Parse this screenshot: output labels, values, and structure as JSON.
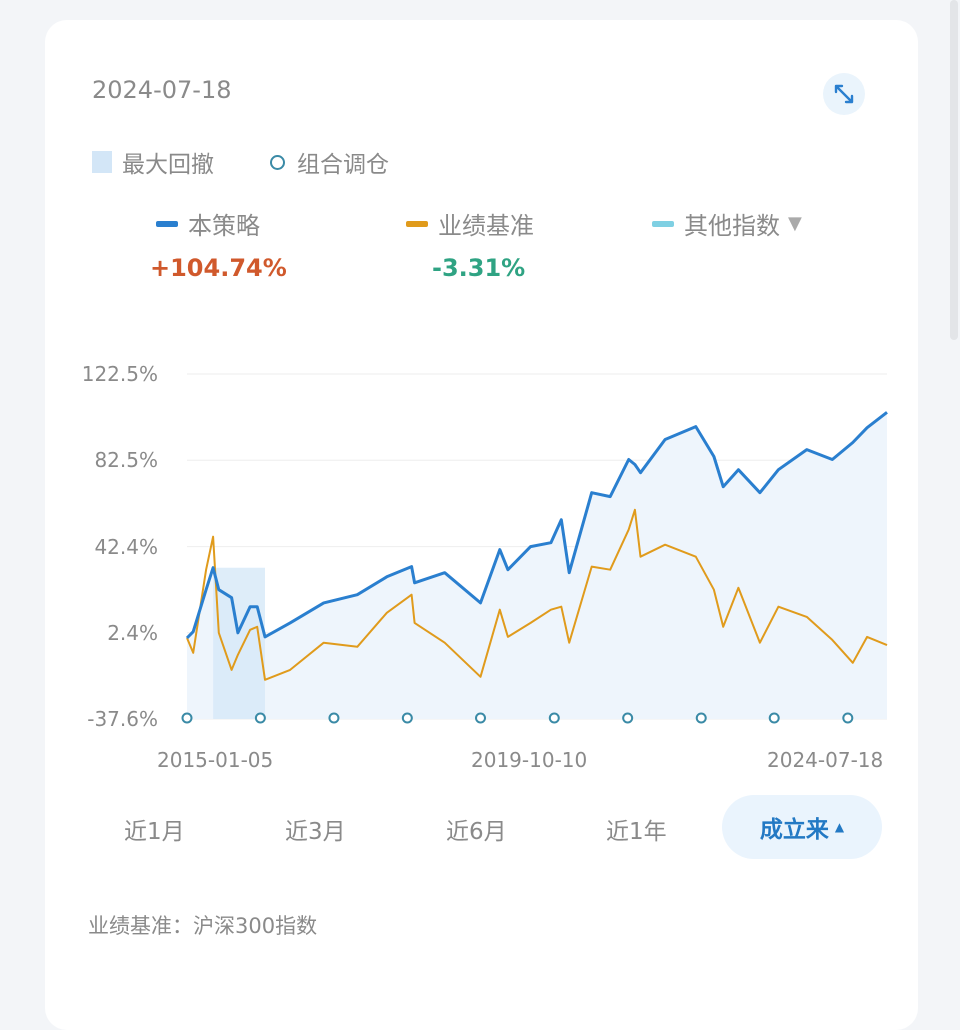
{
  "header": {
    "date": "2024-07-18",
    "expand_icon": "expand-arrows-icon"
  },
  "legend_top": {
    "drawdown_label": "最大回撤",
    "rebalance_label": "组合调仓"
  },
  "series_legend": [
    {
      "label": "本策略",
      "value": "+104.74%",
      "color": "#2a7fcf",
      "value_color": "#d0592c"
    },
    {
      "label": "业绩基准",
      "value": "-3.31%",
      "color": "#e09b1c",
      "value_color": "#2fa383"
    },
    {
      "label": "其他指数",
      "color": "#7fd0e3",
      "dropdown_icon": "triangle-down-icon"
    }
  ],
  "tabs": [
    {
      "label": "近1月"
    },
    {
      "label": "近3月"
    },
    {
      "label": "近6月"
    },
    {
      "label": "近1年"
    },
    {
      "label": "成立来",
      "active": true,
      "icon": "triangle-up-icon"
    }
  ],
  "benchmark_note": "业绩基准：沪深300指数",
  "chart_data": {
    "type": "line",
    "ylim": [
      -37.6,
      122.5
    ],
    "yticks": [
      "122.5%",
      "82.5%",
      "42.4%",
      "2.4%",
      "-37.6%"
    ],
    "ytick_values": [
      122.5,
      82.5,
      42.4,
      2.4,
      -37.6
    ],
    "xticks": [
      "2015-01-05",
      "2019-10-10",
      "2024-07-18"
    ],
    "xlim": [
      "2015-01-05",
      "2024-07-18"
    ],
    "grid": true,
    "x": [
      "2015-01-05",
      "2015-02-05",
      "2015-04-10",
      "2015-05-15",
      "2015-06-12",
      "2015-08-15",
      "2015-09-15",
      "2015-11-15",
      "2015-12-20",
      "2016-01-28",
      "2016-06-01",
      "2016-11-15",
      "2017-05-01",
      "2017-09-25",
      "2018-01-26",
      "2018-02-10",
      "2018-07-10",
      "2019-01-04",
      "2019-04-10",
      "2019-05-20",
      "2019-09-10",
      "2019-12-20",
      "2020-02-10",
      "2020-03-20",
      "2020-07-10",
      "2020-10-10",
      "2021-01-10",
      "2021-02-10",
      "2021-03-10",
      "2021-07-10",
      "2021-12-10",
      "2022-03-10",
      "2022-04-25",
      "2022-07-10",
      "2022-10-25",
      "2023-01-25",
      "2023-06-15",
      "2023-10-20",
      "2024-01-30",
      "2024-04-10",
      "2024-07-18"
    ],
    "series": [
      {
        "name": "本策略",
        "color": "#2a7fcf",
        "values": [
          0,
          2.9,
          22.4,
          32.6,
          22.4,
          18.7,
          2.4,
          14.5,
          14.5,
          0.5,
          7.0,
          16.3,
          20.1,
          28.4,
          33.1,
          25.6,
          30.3,
          16.3,
          41.0,
          31.7,
          42.4,
          44.2,
          54.9,
          30.3,
          67.4,
          65.6,
          82.8,
          80.5,
          76.7,
          92.1,
          98.1,
          84.2,
          70.2,
          78.1,
          67.4,
          78.1,
          87.4,
          82.8,
          90.7,
          97.6,
          104.74
        ]
      },
      {
        "name": "业绩基准",
        "color": "#e09b1c",
        "values": [
          0,
          -6.9,
          31.7,
          47.0,
          2.4,
          -14.8,
          -7.8,
          3.8,
          5.2,
          -19.4,
          -14.8,
          -2.2,
          -4.1,
          11.7,
          20.1,
          7.0,
          -2.2,
          -18.0,
          13.1,
          0.5,
          7.0,
          13.1,
          14.5,
          -2.2,
          33.1,
          31.7,
          50.3,
          59.5,
          37.7,
          43.3,
          37.7,
          22.4,
          5.2,
          23.3,
          -2.2,
          14.5,
          9.8,
          -0.9,
          -11.5,
          0.5,
          -3.31
        ]
      }
    ],
    "max_drawdown_period": [
      "2015-05-15",
      "2016-01-28"
    ],
    "rebalance_dates": [
      "2015-01-05",
      "2016-01-05",
      "2017-01-05",
      "2018-01-05",
      "2019-01-04",
      "2020-01-06",
      "2021-01-05",
      "2022-01-06",
      "2023-01-04",
      "2024-01-05"
    ],
    "colors": {
      "area_fill": "#eef5fc",
      "drawdown_fill": "#d6e8f8",
      "rebalance_marker": "#3a8aa6",
      "grid": "#eeeeee"
    }
  }
}
